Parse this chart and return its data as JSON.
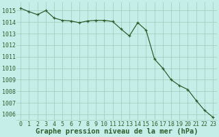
{
  "x": [
    0,
    1,
    2,
    3,
    4,
    5,
    6,
    7,
    8,
    9,
    10,
    11,
    12,
    13,
    14,
    15,
    16,
    17,
    18,
    19,
    20,
    21,
    22,
    23
  ],
  "y": [
    1015.2,
    1014.9,
    1014.65,
    1015.0,
    1014.35,
    1014.15,
    1014.1,
    1013.95,
    1014.1,
    1014.15,
    1014.15,
    1014.05,
    1013.4,
    1012.8,
    1013.95,
    1013.3,
    1010.8,
    1010.0,
    1009.0,
    1008.5,
    1008.15,
    1007.2,
    1006.35,
    1005.75
  ],
  "line_color": "#2e5e2e",
  "marker": "+",
  "bg_color": "#c5eee8",
  "grid_color": "#a0c8b8",
  "xlabel": "Graphe pression niveau de la mer (hPa)",
  "ylim": [
    1005.5,
    1015.75
  ],
  "xlim": [
    -0.5,
    23.5
  ],
  "yticks": [
    1006,
    1007,
    1008,
    1009,
    1010,
    1011,
    1012,
    1013,
    1014,
    1015
  ],
  "xticks": [
    0,
    1,
    2,
    3,
    4,
    5,
    6,
    7,
    8,
    9,
    10,
    11,
    12,
    13,
    14,
    15,
    16,
    17,
    18,
    19,
    20,
    21,
    22,
    23
  ],
  "tick_fontsize": 6.0,
  "xlabel_fontsize": 7.5,
  "xlabel_fontweight": "bold",
  "xlabel_color": "#2e5e2e"
}
